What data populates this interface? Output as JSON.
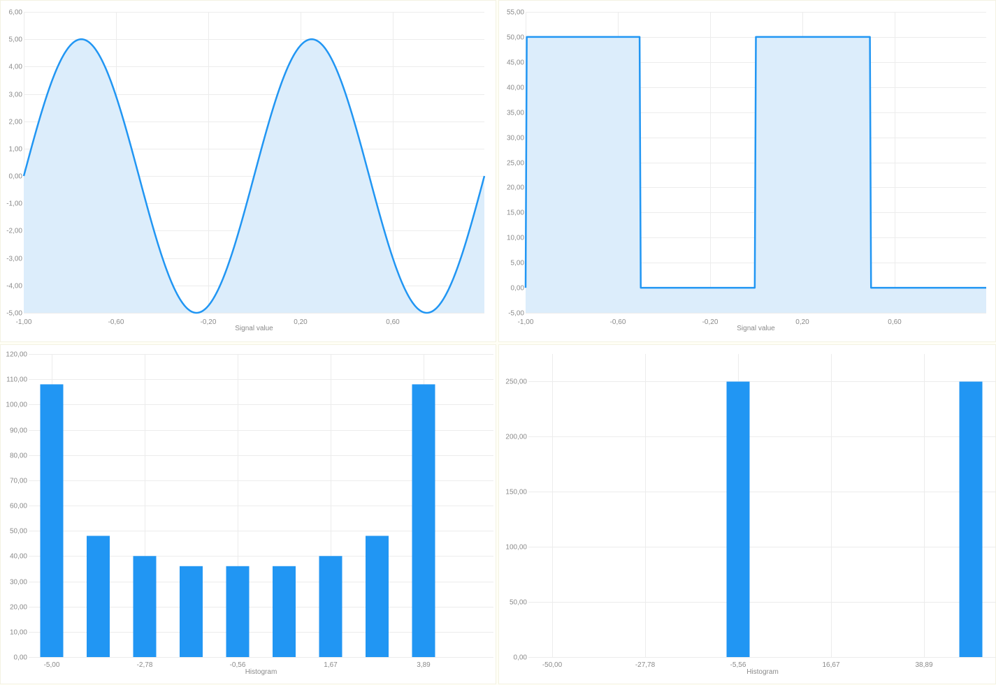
{
  "colors": {
    "series": "#2196f3",
    "fill": "#dcedfb",
    "grid": "#ececec",
    "text": "#8a8a8a"
  },
  "chart_data": [
    {
      "type": "area",
      "xlabel": "Signal value",
      "ylabel": "",
      "xlim": [
        -1.0,
        1.0
      ],
      "ylim": [
        -5.0,
        6.0
      ],
      "x_ticks": [
        "-1,00",
        "-0,60",
        "-0,20",
        "0,20",
        "0,60"
      ],
      "y_ticks": [
        "-5,00",
        "-4,00",
        "-3,00",
        "-2,00",
        "-1,00",
        "0,00",
        "1,00",
        "2,00",
        "3,00",
        "4,00",
        "5,00",
        "6,00"
      ],
      "x": [
        -1.0,
        -0.9,
        -0.8,
        -0.75,
        -0.7,
        -0.6,
        -0.5,
        -0.4,
        -0.3,
        -0.25,
        -0.2,
        -0.1,
        0.0,
        0.1,
        0.2,
        0.25,
        0.3,
        0.4,
        0.5,
        0.6,
        0.7,
        0.75,
        0.8,
        0.9,
        1.0
      ],
      "y": [
        0.0,
        2.94,
        4.76,
        5.0,
        4.76,
        2.94,
        0.0,
        -2.94,
        -4.76,
        -5.0,
        -4.76,
        -2.94,
        0.0,
        2.94,
        4.76,
        5.0,
        4.76,
        2.94,
        0.0,
        -2.94,
        -4.76,
        -5.0,
        -4.76,
        -2.94,
        0.0
      ]
    },
    {
      "type": "area",
      "xlabel": "Signal value",
      "ylabel": "",
      "xlim": [
        -1.0,
        1.0
      ],
      "ylim": [
        -5.0,
        55.0
      ],
      "x_ticks": [
        "-1,00",
        "-0,60",
        "-0,20",
        "0,20",
        "0,60"
      ],
      "y_ticks": [
        "-5,00",
        "0,00",
        "5,00",
        "10,00",
        "15,00",
        "20,00",
        "25,00",
        "30,00",
        "35,00",
        "40,00",
        "45,00",
        "50,00",
        "55,00"
      ],
      "x": [
        -1.0,
        -0.995,
        -0.505,
        -0.5,
        -0.005,
        0.0,
        0.495,
        0.5,
        1.0
      ],
      "y": [
        0,
        50,
        50,
        0,
        0,
        50,
        50,
        0,
        0
      ]
    },
    {
      "type": "bar",
      "xlabel": "Histogram",
      "ylabel": "",
      "ylim": [
        0,
        120
      ],
      "x_ticks": [
        "-5,00",
        "-2,78",
        "-0,56",
        "1,67",
        "3,89"
      ],
      "y_ticks": [
        "0,00",
        "10,00",
        "20,00",
        "30,00",
        "40,00",
        "50,00",
        "60,00",
        "70,00",
        "80,00",
        "90,00",
        "100,00",
        "110,00",
        "120,00"
      ],
      "values": [
        108,
        48,
        40,
        36,
        36,
        36,
        40,
        48,
        108
      ]
    },
    {
      "type": "bar",
      "xlabel": "Histogram",
      "ylabel": "",
      "ylim": [
        0,
        250
      ],
      "x_ticks": [
        "-50,00",
        "-27,78",
        "-5,56",
        "16,67",
        "38,89"
      ],
      "y_ticks": [
        "0,00",
        "50,00",
        "100,00",
        "150,00",
        "200,00",
        "250,00"
      ],
      "values": [
        0,
        0,
        0,
        0,
        250,
        0,
        0,
        0,
        0,
        250
      ]
    }
  ]
}
